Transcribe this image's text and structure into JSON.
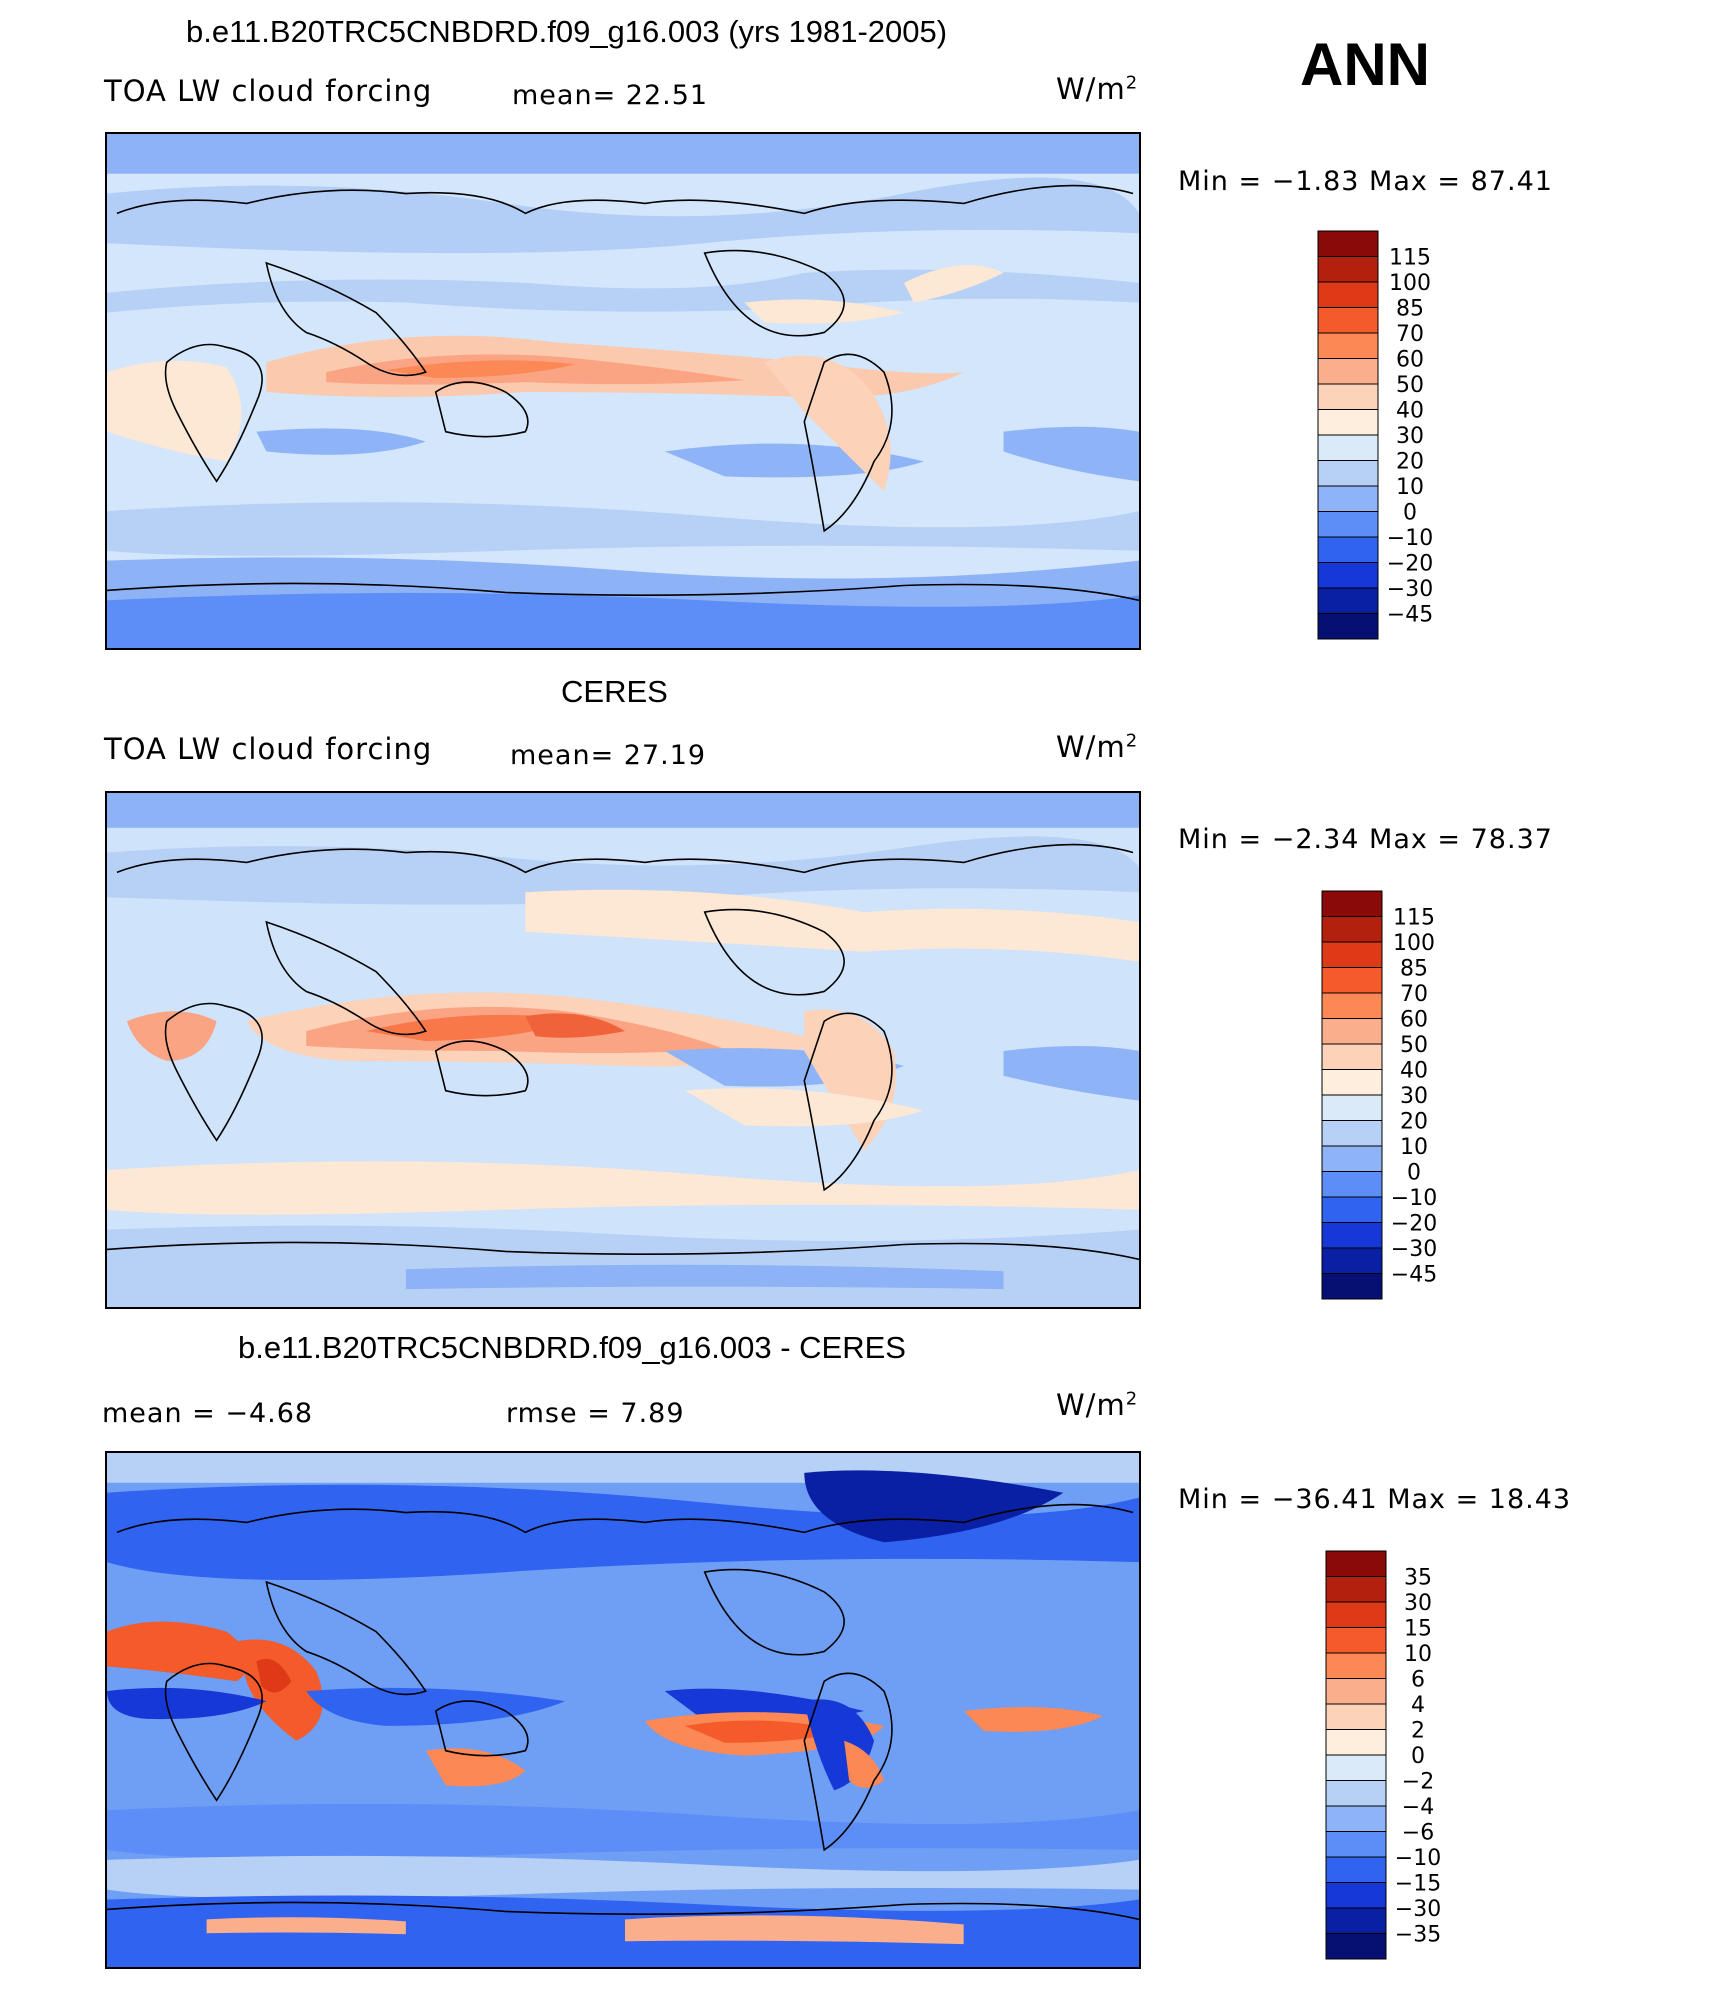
{
  "season": "ANN",
  "units_label": "W/m",
  "units_exp": "2",
  "panels": [
    {
      "title": "b.e11.B20TRC5CNBDRD.f09_g16.003 (yrs 1981-2005)",
      "variable": "TOA LW cloud forcing",
      "stat1": "mean=   22.51",
      "stat2": "",
      "range": "Min  =    −1.83  Max  =    87.41",
      "colorbar_labels": [
        "115",
        "100",
        "85",
        "70",
        "60",
        "50",
        "40",
        "30",
        "20",
        "10",
        "0",
        "−10",
        "−20",
        "−30",
        "−45"
      ],
      "colorbar_colors": [
        "#8a0a0a",
        "#b3200e",
        "#de3a18",
        "#f55a2a",
        "#fb8855",
        "#fbae8c",
        "#fcd2b9",
        "#fdeedd",
        "#daeaf8",
        "#b6d1f5",
        "#8fb3f7",
        "#5d8ef7",
        "#2f63f0",
        "#1638d6",
        "#0a20a4",
        "#061072"
      ],
      "fields": {
        "bg": "#cfe3fa",
        "land": "#bdd6f7"
      }
    },
    {
      "title": "CERES",
      "variable": "TOA LW cloud forcing",
      "stat1": "mean=   27.19",
      "stat2": "",
      "range": "Min  =    −2.34  Max  =    78.37",
      "colorbar_labels": [
        "115",
        "100",
        "85",
        "70",
        "60",
        "50",
        "40",
        "30",
        "20",
        "10",
        "0",
        "−10",
        "−20",
        "−30",
        "−45"
      ],
      "colorbar_colors": [
        "#8a0a0a",
        "#b3200e",
        "#de3a18",
        "#f55a2a",
        "#fb8855",
        "#fbae8c",
        "#fcd2b9",
        "#fdeedd",
        "#daeaf8",
        "#b6d1f5",
        "#8fb3f7",
        "#5d8ef7",
        "#2f63f0",
        "#1638d6",
        "#0a20a4",
        "#061072"
      ],
      "fields": {
        "bg": "#d3e5fa",
        "land": "#c4daf7"
      }
    },
    {
      "title": "b.e11.B20TRC5CNBDRD.f09_g16.003 - CERES",
      "variable": "",
      "stat1": "mean  =    −4.68",
      "stat2": "rmse  =     7.89",
      "range": "Min  =  −36.41  Max  =     18.43",
      "colorbar_labels": [
        "35",
        "30",
        "15",
        "10",
        "6",
        "4",
        "2",
        "0",
        "−2",
        "−4",
        "−6",
        "−10",
        "−15",
        "−30",
        "−35"
      ],
      "colorbar_colors": [
        "#8a0a0a",
        "#b3200e",
        "#de3a18",
        "#f55a2a",
        "#fb8855",
        "#fbae8c",
        "#fcd2b9",
        "#fdeedd",
        "#daeaf8",
        "#b6d1f5",
        "#8fb3f7",
        "#5d8ef7",
        "#2f63f0",
        "#1638d6",
        "#0a20a4",
        "#061072"
      ],
      "fields": {
        "bg": "#6f9ef5",
        "land": "#4f82f0"
      }
    }
  ]
}
